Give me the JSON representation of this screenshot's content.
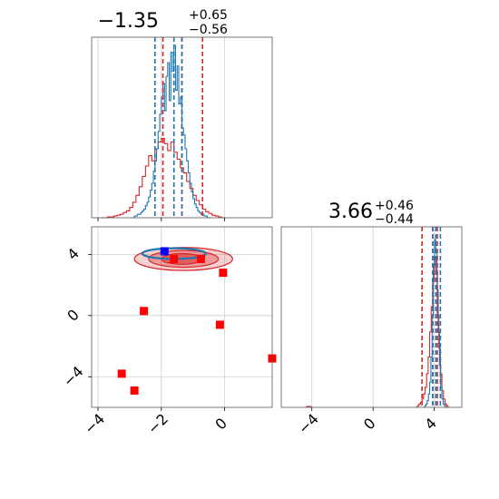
{
  "chart_data": {
    "type": "corner",
    "parameters": [
      {
        "title": {
          "median": "−1.35",
          "plus": "+0.65",
          "minus": "−0.56"
        },
        "range": [
          -4.2,
          1.5
        ],
        "ticks": [
          -4,
          -2,
          0
        ],
        "tick_labels": [
          "−4",
          "−2",
          "0"
        ]
      },
      {
        "title": {
          "median": "3.66",
          "plus": "+0.46",
          "minus": "−0.44"
        },
        "range": [
          -6.0,
          5.8
        ],
        "ticks": [
          -4,
          0,
          4
        ],
        "tick_labels": [
          "−4",
          "0",
          "4"
        ]
      }
    ],
    "series_colors": {
      "blue": "#1f77b4",
      "red": "#d62728"
    },
    "marginal_1": {
      "blue_quantiles": [
        -2.2,
        -1.6,
        -1.35
      ],
      "red_quantiles": [
        -1.95,
        -0.7,
        -1.35
      ],
      "blue_hist": {
        "x_start": -2.95,
        "bin_width": 0.05,
        "counts": [
          0,
          0,
          0.01,
          0.01,
          0.02,
          0.02,
          0.03,
          0.04,
          0.05,
          0.07,
          0.09,
          0.12,
          0.16,
          0.2,
          0.27,
          0.33,
          0.4,
          0.5,
          0.6,
          0.7,
          0.78,
          0.62,
          0.82,
          0.9,
          0.68,
          0.96,
          0.85,
          1.0,
          0.74,
          0.88,
          0.66,
          0.7,
          0.52,
          0.48,
          0.4,
          0.33,
          0.26,
          0.2,
          0.15,
          0.11,
          0.08,
          0.06,
          0.04,
          0.03,
          0.02,
          0.02,
          0.01,
          0.01,
          0,
          0
        ]
      },
      "red_hist": {
        "x_start": -3.9,
        "bin_width": 0.1,
        "counts": [
          0,
          0,
          0.005,
          0.005,
          0.01,
          0.015,
          0.02,
          0.03,
          0.04,
          0.06,
          0.09,
          0.13,
          0.18,
          0.24,
          0.3,
          0.36,
          0.33,
          0.4,
          0.44,
          0.46,
          0.43,
          0.39,
          0.44,
          0.38,
          0.34,
          0.29,
          0.26,
          0.21,
          0.17,
          0.13,
          0.1,
          0.075,
          0.05,
          0.035,
          0.025,
          0.015,
          0.01,
          0.005,
          0
        ]
      }
    },
    "marginal_2": {
      "blue_quantiles": [
        3.9,
        4.4,
        4.1
      ],
      "red_quantiles": [
        3.2,
        4.2,
        3.9
      ],
      "blue_hist": {
        "x_start": 3.3,
        "bin_width": 0.08,
        "counts": [
          0,
          0.01,
          0.02,
          0.04,
          0.08,
          0.15,
          0.3,
          0.55,
          0.85,
          1.0,
          0.92,
          0.7,
          0.45,
          0.25,
          0.12,
          0.05,
          0.02,
          0.01,
          0
        ]
      },
      "red_hist": {
        "x_start": 2.8,
        "bin_width": 0.1,
        "counts": [
          0,
          0.01,
          0.02,
          0.03,
          0.05,
          0.08,
          0.12,
          0.2,
          0.3,
          0.45,
          0.6,
          0.75,
          0.9,
          0.8,
          0.55,
          0.35,
          0.2,
          0.1,
          0.05,
          0.02,
          0.01,
          0
        ]
      },
      "extra_ticks_low": [
        -4.2
      ]
    },
    "joint": {
      "x_range": [
        -4.2,
        1.5
      ],
      "y_range": [
        -6.0,
        5.8
      ],
      "red_contours": [
        {
          "cx": -1.3,
          "cy": 3.7,
          "rx": 1.55,
          "ry": 0.75,
          "opacity": 0.35
        },
        {
          "cx": -1.3,
          "cy": 3.7,
          "rx": 1.1,
          "ry": 0.55,
          "opacity": 0.55
        },
        {
          "cx": -1.35,
          "cy": 3.7,
          "rx": 0.65,
          "ry": 0.35,
          "opacity": 0.85
        }
      ],
      "blue_contours": [
        {
          "cx": -1.6,
          "cy": 4.05,
          "rx": 1.0,
          "ry": 0.35
        }
      ],
      "red_squares": [
        {
          "x": -1.6,
          "y": 3.7
        },
        {
          "x": -0.75,
          "y": 3.7
        },
        {
          "x": -0.05,
          "y": 2.8
        },
        {
          "x": -2.55,
          "y": 0.3
        },
        {
          "x": -0.15,
          "y": -0.6
        },
        {
          "x": 1.5,
          "y": -2.8
        },
        {
          "x": -3.25,
          "y": -3.8
        },
        {
          "x": -2.85,
          "y": -4.9
        }
      ],
      "blue_squares": [
        {
          "x": -1.9,
          "y": 4.2
        }
      ]
    }
  }
}
